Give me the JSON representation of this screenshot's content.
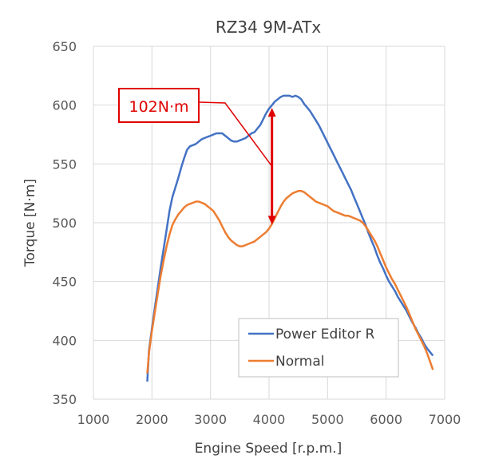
{
  "chart_data": {
    "type": "line",
    "title": "RZ34 9M-ATx",
    "xlabel": "Engine Speed [r.p.m.]",
    "ylabel": "Torque [N·m]",
    "xlim": [
      1000,
      7000
    ],
    "ylim": [
      350,
      650
    ],
    "xticks": [
      "1000",
      "2000",
      "3000",
      "4000",
      "5000",
      "6000",
      "7000"
    ],
    "yticks": [
      "350",
      "400",
      "450",
      "500",
      "550",
      "600",
      "650"
    ],
    "grid": "vertical-and-horizontal",
    "legend_position": "bottom-right",
    "series": [
      {
        "name": "Power Editor R",
        "color": "#4472C4",
        "x": [
          1920,
          1950,
          2000,
          2050,
          2100,
          2150,
          2200,
          2250,
          2300,
          2350,
          2400,
          2450,
          2500,
          2550,
          2600,
          2650,
          2700,
          2750,
          2800,
          2850,
          2900,
          2950,
          3000,
          3050,
          3100,
          3150,
          3200,
          3250,
          3300,
          3350,
          3400,
          3450,
          3500,
          3550,
          3600,
          3650,
          3700,
          3750,
          3800,
          3850,
          3900,
          3950,
          4000,
          4050,
          4100,
          4150,
          4200,
          4250,
          4300,
          4350,
          4400,
          4450,
          4500,
          4550,
          4600,
          4650,
          4700,
          4750,
          4800,
          4850,
          4900,
          4950,
          5000,
          5050,
          5100,
          5150,
          5200,
          5250,
          5300,
          5350,
          5400,
          5450,
          5500,
          5550,
          5600,
          5650,
          5700,
          5750,
          5800,
          5850,
          5900,
          5950,
          6000,
          6050,
          6100,
          6150,
          6200,
          6250,
          6300,
          6350,
          6400,
          6450,
          6500,
          6550,
          6600,
          6650,
          6700,
          6750,
          6800
        ],
        "values": [
          365,
          392,
          410,
          428,
          445,
          462,
          478,
          494,
          510,
          522,
          530,
          538,
          547,
          555,
          562,
          565,
          566,
          567,
          569,
          571,
          572,
          573,
          574,
          575,
          576,
          576,
          576,
          574,
          572,
          570,
          569,
          569,
          570,
          571,
          572,
          574,
          576,
          577,
          580,
          583,
          588,
          593,
          597,
          600,
          603,
          605,
          607,
          608,
          608,
          608,
          607,
          608,
          607,
          605,
          601,
          598,
          595,
          591,
          587,
          583,
          578,
          573,
          568,
          563,
          558,
          553,
          548,
          543,
          538,
          533,
          528,
          522,
          516,
          510,
          504,
          498,
          491,
          485,
          479,
          472,
          466,
          461,
          455,
          450,
          446,
          442,
          437,
          433,
          429,
          425,
          420,
          415,
          411,
          406,
          402,
          397,
          393,
          390,
          387
        ]
      },
      {
        "name": "Normal",
        "color": "#ED7D31",
        "x": [
          1920,
          1950,
          2000,
          2050,
          2100,
          2150,
          2200,
          2250,
          2300,
          2350,
          2400,
          2450,
          2500,
          2550,
          2600,
          2650,
          2700,
          2750,
          2800,
          2850,
          2900,
          2950,
          3000,
          3050,
          3100,
          3150,
          3200,
          3250,
          3300,
          3350,
          3400,
          3450,
          3500,
          3550,
          3600,
          3650,
          3700,
          3750,
          3800,
          3850,
          3900,
          3950,
          4000,
          4050,
          4100,
          4150,
          4200,
          4250,
          4300,
          4350,
          4400,
          4450,
          4500,
          4550,
          4600,
          4650,
          4700,
          4750,
          4800,
          4850,
          4900,
          4950,
          5000,
          5050,
          5100,
          5150,
          5200,
          5250,
          5300,
          5350,
          5400,
          5450,
          5500,
          5550,
          5600,
          5650,
          5700,
          5750,
          5800,
          5850,
          5900,
          5950,
          6000,
          6050,
          6100,
          6150,
          6200,
          6250,
          6300,
          6350,
          6400,
          6450,
          6500,
          6550,
          6600,
          6650,
          6700,
          6750,
          6800
        ],
        "values": [
          372,
          390,
          408,
          424,
          440,
          455,
          468,
          480,
          490,
          498,
          503,
          507,
          510,
          513,
          515,
          516,
          517,
          518,
          518,
          517,
          516,
          514,
          512,
          510,
          506,
          502,
          497,
          492,
          488,
          485,
          483,
          481,
          480,
          480,
          481,
          482,
          483,
          484,
          486,
          488,
          490,
          492,
          495,
          499,
          504,
          509,
          514,
          518,
          521,
          523,
          525,
          526,
          527,
          527,
          526,
          524,
          522,
          520,
          518,
          517,
          516,
          515,
          514,
          512,
          510,
          509,
          508,
          507,
          506,
          506,
          505,
          504,
          503,
          502,
          500,
          497,
          493,
          489,
          485,
          480,
          474,
          468,
          462,
          457,
          452,
          448,
          443,
          438,
          433,
          428,
          422,
          416,
          410,
          405,
          400,
          395,
          389,
          382,
          375
        ]
      }
    ],
    "annotation": {
      "text": "102N·m",
      "arrow_x": 4050,
      "arrow_top": 599,
      "arrow_bottom": 497,
      "color": "#E00000"
    }
  }
}
